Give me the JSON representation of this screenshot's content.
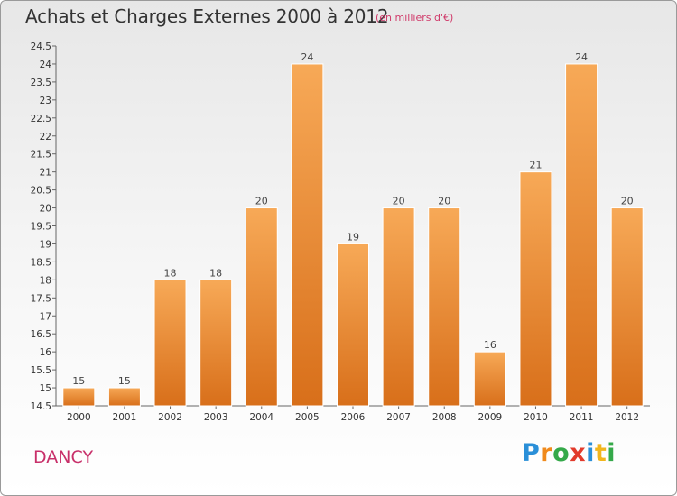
{
  "title": "Achats et Charges Externes 2000 à 2012",
  "subtitle": "(en milliers d'€)",
  "commune": "DANCY",
  "logo": {
    "letters": [
      "P",
      "r",
      "o",
      "x",
      "i",
      "t",
      "i"
    ],
    "colors": [
      "#2a8fd8",
      "#f08a1c",
      "#35a94a",
      "#e23b2c",
      "#2a8fd8",
      "#f2b51c",
      "#35a94a"
    ]
  },
  "chart_data": {
    "type": "bar",
    "title": "Achats et Charges Externes 2000 à 2012",
    "categories": [
      "2000",
      "2001",
      "2002",
      "2003",
      "2004",
      "2005",
      "2006",
      "2007",
      "2008",
      "2009",
      "2010",
      "2011",
      "2012"
    ],
    "values": [
      15,
      15,
      18,
      18,
      20,
      24,
      19,
      20,
      20,
      16,
      21,
      24,
      20
    ],
    "value_labels": [
      "15",
      "15",
      "18",
      "18",
      "20",
      "24",
      "19",
      "20",
      "20",
      "16",
      "21",
      "24",
      "20"
    ],
    "ylim": [
      14.5,
      24.5
    ],
    "yticks": [
      "14.5",
      "15",
      "15.5",
      "16",
      "16.5",
      "17",
      "17.5",
      "18",
      "18.5",
      "19",
      "19.5",
      "20",
      "20.5",
      "21",
      "21.5",
      "22",
      "22.5",
      "23",
      "23.5",
      "24",
      "24.5"
    ],
    "grid": false,
    "bar_color": "#f29a3c"
  }
}
